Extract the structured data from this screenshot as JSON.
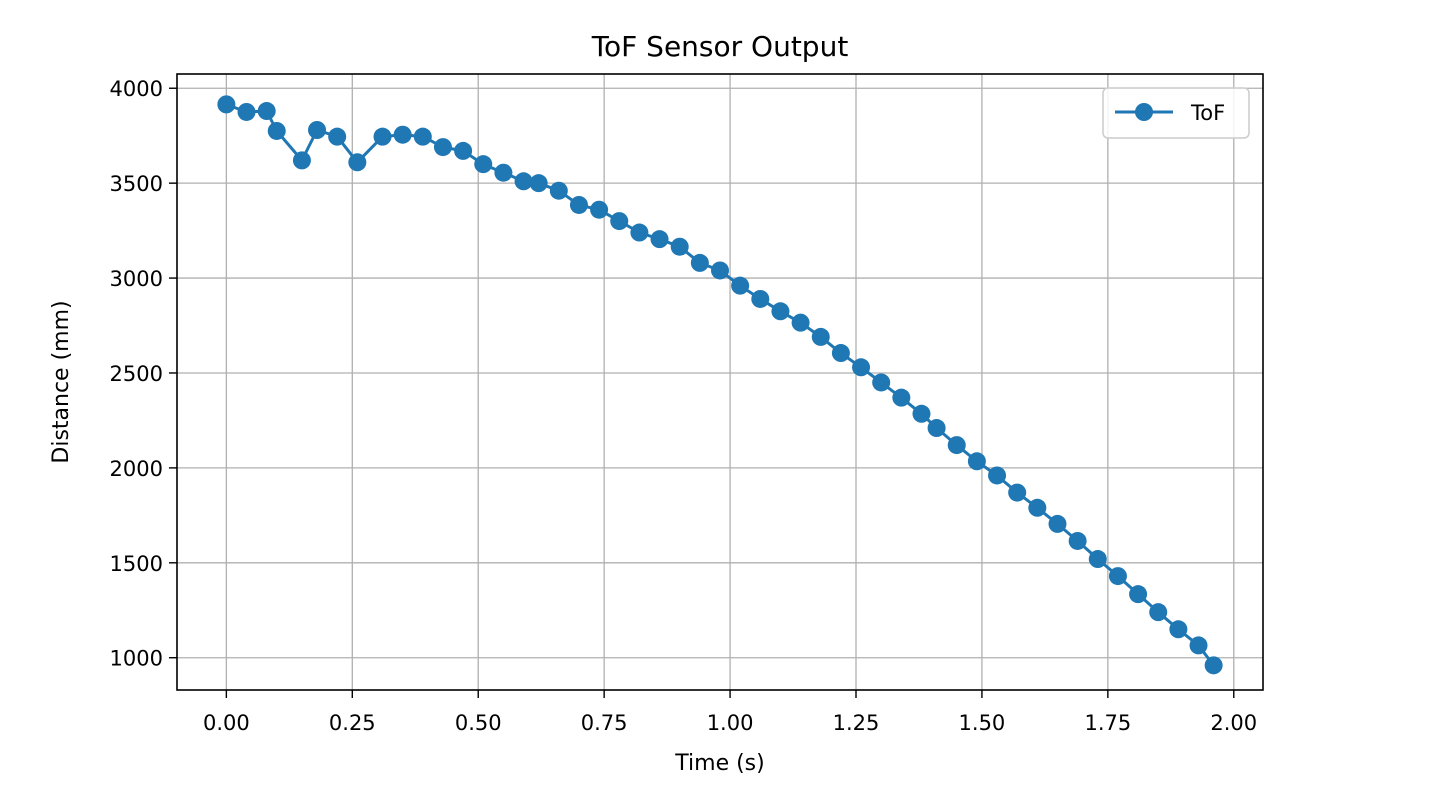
{
  "chart_data": {
    "type": "line",
    "title": "ToF Sensor Output",
    "xlabel": "Time (s)",
    "ylabel": "Distance (mm)",
    "xlim": [
      -0.098,
      2.058
    ],
    "ylim": [
      830,
      4075
    ],
    "xticks": [
      0.0,
      0.25,
      0.5,
      0.75,
      1.0,
      1.25,
      1.5,
      1.75,
      2.0
    ],
    "xtick_labels": [
      "0.00",
      "0.25",
      "0.50",
      "0.75",
      "1.00",
      "1.25",
      "1.50",
      "1.75",
      "2.00"
    ],
    "yticks": [
      1000,
      1500,
      2000,
      2500,
      3000,
      3500,
      4000
    ],
    "ytick_labels": [
      "1000",
      "1500",
      "2000",
      "2500",
      "3000",
      "3500",
      "4000"
    ],
    "grid": true,
    "legend": "top-right",
    "colors": {
      "series": "#1f77b4",
      "grid": "#b0b0b0",
      "axes": "#000000"
    },
    "series": [
      {
        "name": "ToF",
        "marker": "circle",
        "x": [
          0.0,
          0.04,
          0.08,
          0.1,
          0.15,
          0.18,
          0.22,
          0.26,
          0.31,
          0.35,
          0.39,
          0.43,
          0.47,
          0.51,
          0.55,
          0.59,
          0.62,
          0.66,
          0.7,
          0.74,
          0.78,
          0.82,
          0.86,
          0.9,
          0.94,
          0.98,
          1.02,
          1.06,
          1.1,
          1.14,
          1.18,
          1.22,
          1.26,
          1.3,
          1.34,
          1.38,
          1.41,
          1.45,
          1.49,
          1.53,
          1.57,
          1.61,
          1.65,
          1.69,
          1.73,
          1.77,
          1.81,
          1.85,
          1.89,
          1.93,
          1.96
        ],
        "y": [
          3915,
          3875,
          3880,
          3775,
          3620,
          3780,
          3745,
          3610,
          3745,
          3755,
          3745,
          3690,
          3670,
          3600,
          3555,
          3510,
          3500,
          3460,
          3385,
          3360,
          3300,
          3240,
          3205,
          3165,
          3080,
          3040,
          2960,
          2890,
          2825,
          2765,
          2690,
          2605,
          2530,
          2450,
          2370,
          2285,
          2210,
          2120,
          2035,
          1960,
          1870,
          1790,
          1705,
          1615,
          1520,
          1430,
          1335,
          1240,
          1150,
          1065,
          960
        ]
      }
    ]
  }
}
